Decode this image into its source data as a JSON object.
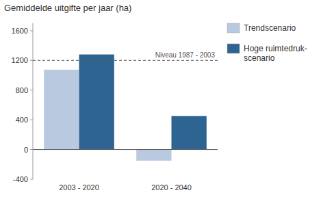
{
  "chart_data": {
    "type": "bar",
    "title": "Gemiddelde uitgifte per jaar (ha)",
    "categories": [
      "2003 - 2020",
      "2020 - 2040"
    ],
    "series": [
      {
        "name": "Trendscenario",
        "color": "#b8c9e0",
        "values": [
          1075,
          -150
        ]
      },
      {
        "name": "Hoge ruimtedruk-\nscenario",
        "color": "#2e6492",
        "values": [
          1280,
          450
        ]
      }
    ],
    "annotations": [
      {
        "text": "Niveau 1987 - 2003",
        "y": 1200
      }
    ],
    "ylim": [
      -400,
      1700
    ],
    "yticks": [
      -400,
      0,
      400,
      800,
      1200,
      1600
    ],
    "legend": "right"
  }
}
